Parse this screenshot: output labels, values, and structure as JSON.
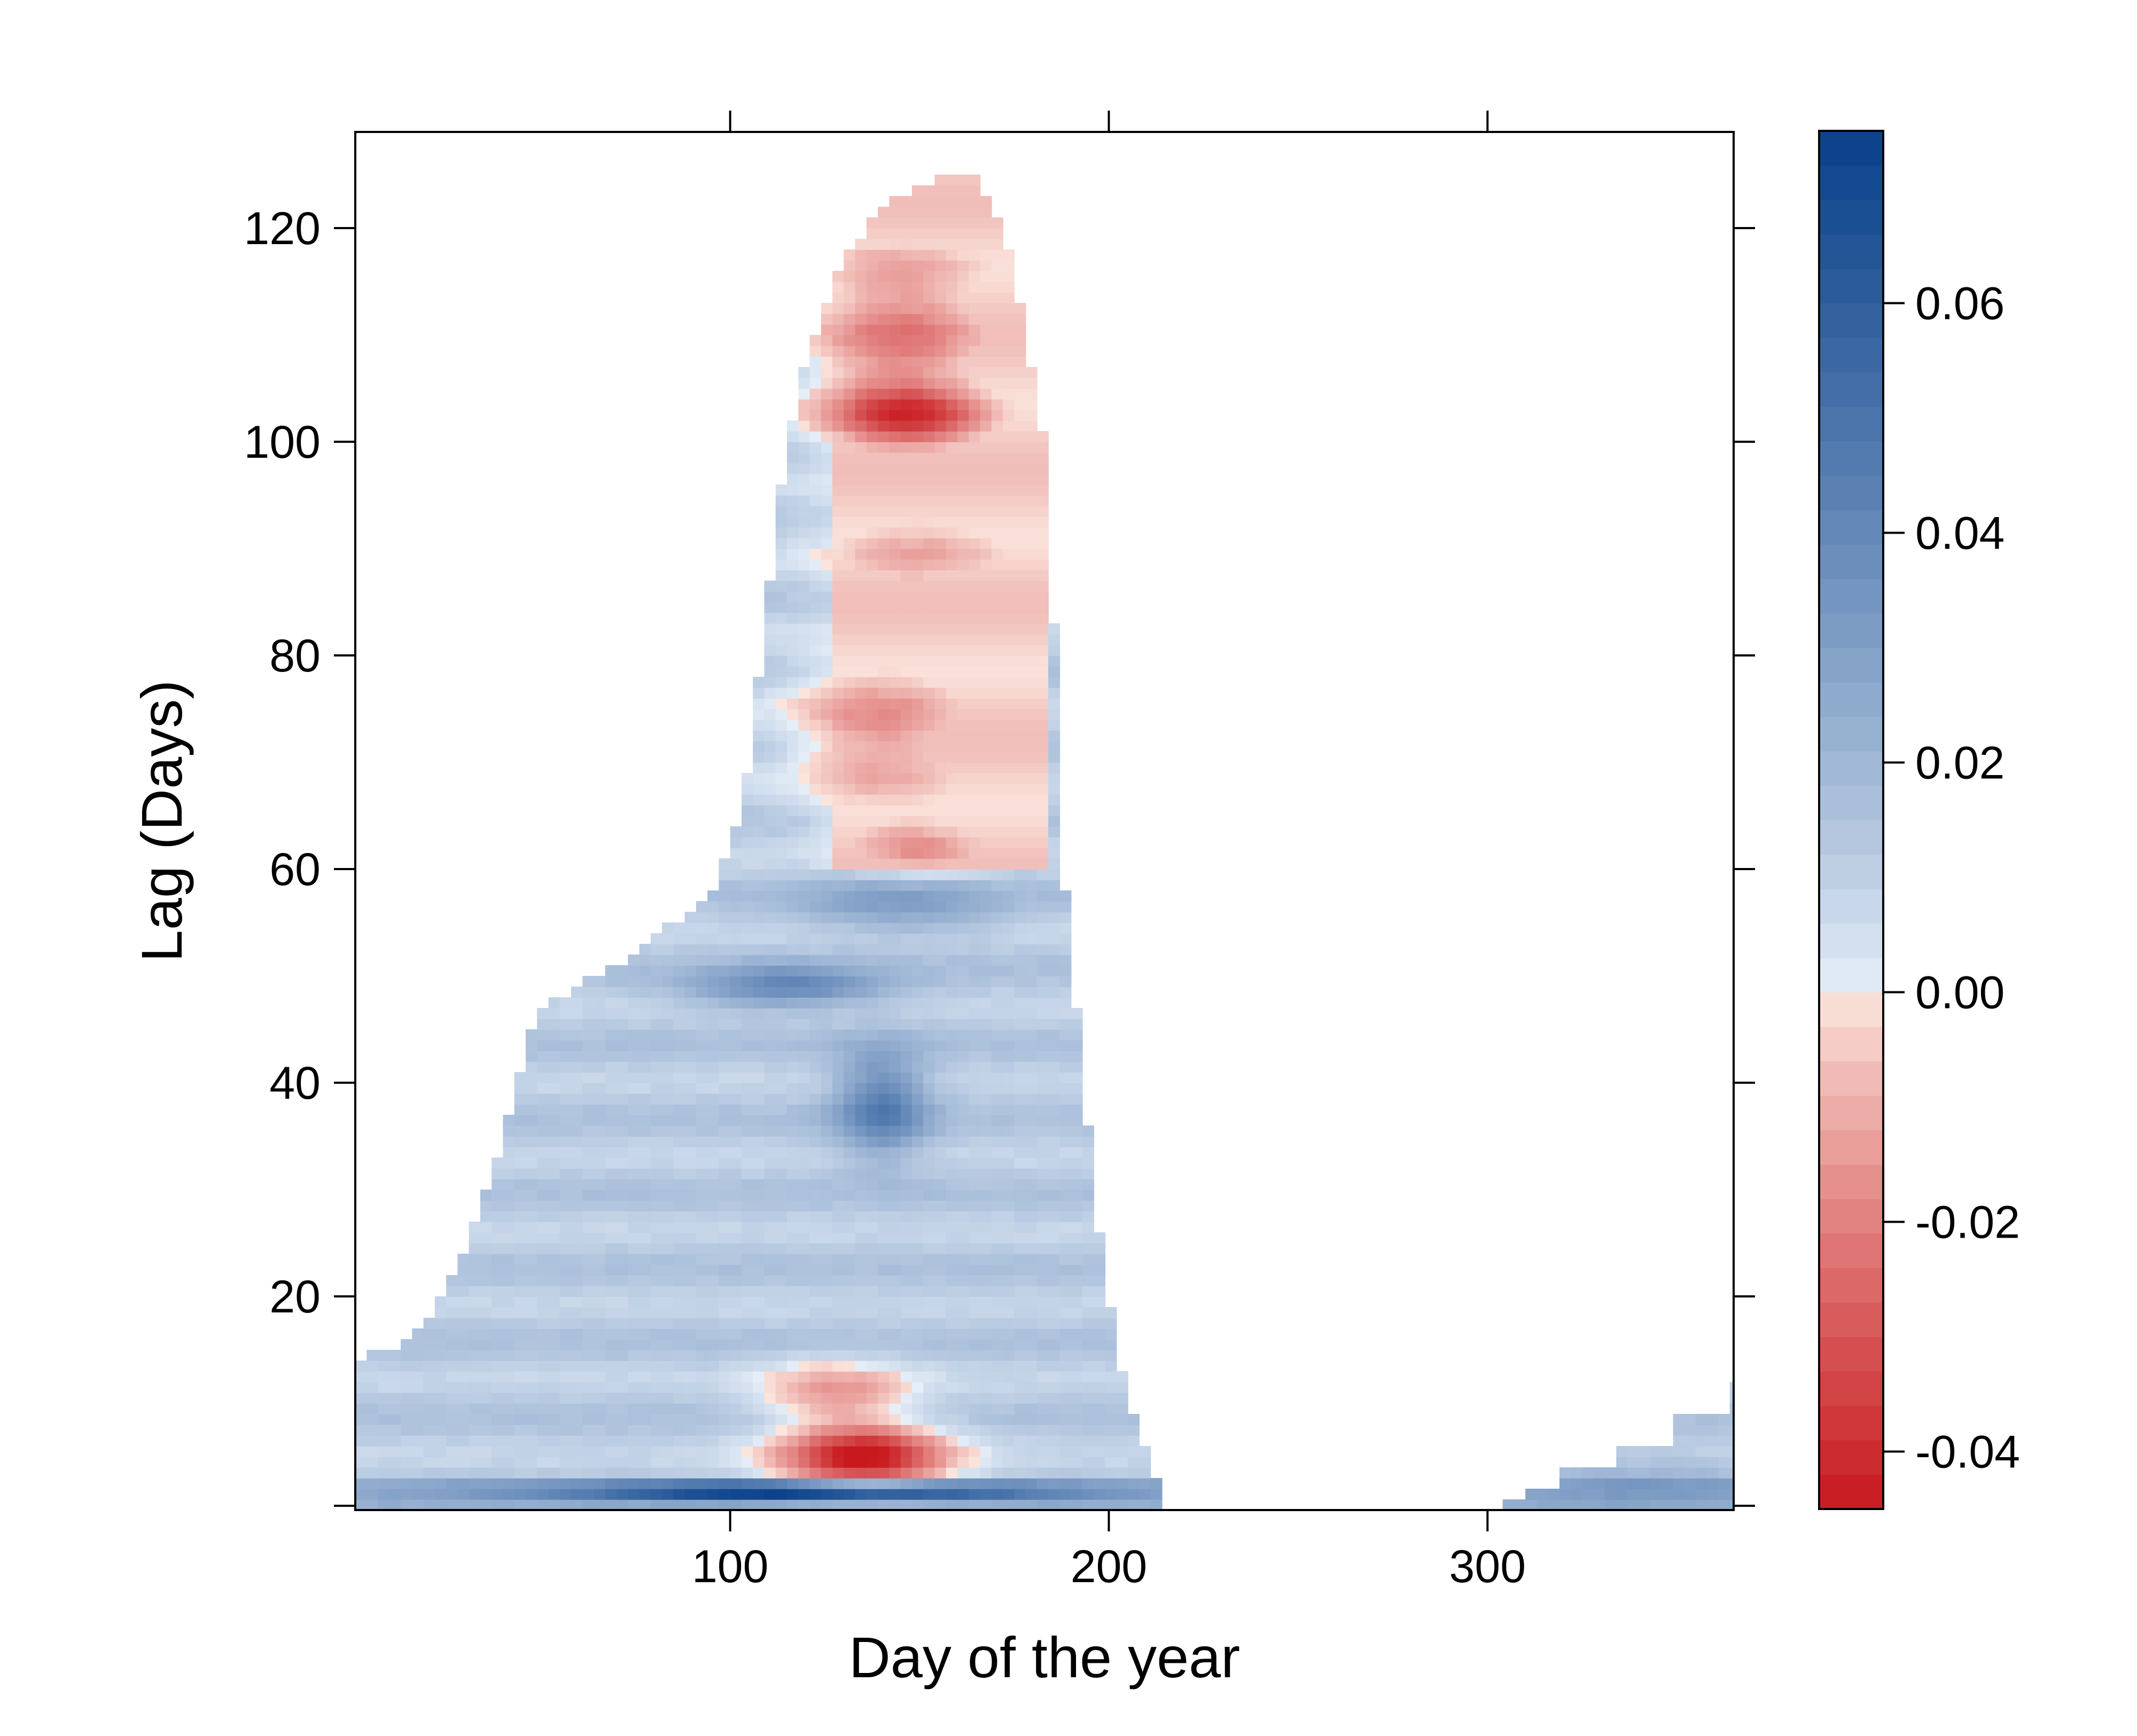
{
  "chart_data": {
    "type": "heatmap",
    "xlabel": "Day of the year",
    "ylabel": "Lag (Days)",
    "xlim": [
      1,
      365
    ],
    "ylim": [
      0,
      129
    ],
    "x_ticks": [
      100,
      200,
      300
    ],
    "x_tick_labels": [
      "100",
      "200",
      "300"
    ],
    "y_ticks": [
      20,
      40,
      60,
      80,
      100,
      120
    ],
    "y_tick_labels": [
      "20",
      "40",
      "60",
      "80",
      "100",
      "120"
    ],
    "colorbar": {
      "range": [
        -0.045,
        0.075
      ],
      "ticks": [
        -0.04,
        -0.02,
        0.0,
        0.02,
        0.04,
        0.06
      ],
      "tick_labels": [
        "-0.04",
        "-0.02",
        "0.00",
        "0.02",
        "0.04",
        "0.06"
      ],
      "negative_color": "#c8191e",
      "zero_color": "#ffffff",
      "positive_color": "#08408a",
      "steps": 40
    },
    "region_outline": {
      "description_points_lag_vs_day": "left boundary and right boundary of the colored area",
      "left_boundary": [
        [
          1,
          14
        ],
        [
          10,
          15
        ],
        [
          20,
          18
        ],
        [
          30,
          24
        ],
        [
          40,
          35
        ],
        [
          45,
          42
        ],
        [
          50,
          47
        ],
        [
          60,
          49
        ],
        [
          75,
          52
        ],
        [
          85,
          55
        ],
        [
          95,
          58
        ],
        [
          100,
          62
        ],
        [
          105,
          70
        ],
        [
          110,
          85
        ],
        [
          115,
          100
        ],
        [
          120,
          108
        ],
        [
          130,
          117
        ],
        [
          140,
          122
        ],
        [
          150,
          124
        ],
        [
          160,
          125
        ]
      ],
      "right_boundary": [
        [
          165,
          125
        ],
        [
          172,
          120
        ],
        [
          178,
          110
        ],
        [
          183,
          100
        ],
        [
          185,
          90
        ],
        [
          186,
          75
        ],
        [
          188,
          60
        ],
        [
          192,
          45
        ],
        [
          196,
          30
        ],
        [
          200,
          20
        ],
        [
          205,
          10
        ],
        [
          210,
          5
        ],
        [
          215,
          1
        ]
      ],
      "late_year_patch": [
        [
          305,
          1
        ],
        [
          310,
          2
        ],
        [
          320,
          4
        ],
        [
          335,
          6
        ],
        [
          350,
          9
        ],
        [
          365,
          12
        ]
      ]
    },
    "features": [
      {
        "day": 135,
        "lag": 5,
        "value": -0.045,
        "spread_day": 22,
        "spread_lag": 3
      },
      {
        "day": 128,
        "lag": 11,
        "value": -0.012,
        "spread_day": 20,
        "spread_lag": 3
      },
      {
        "day": 145,
        "lag": 110,
        "value": -0.02,
        "spread_day": 25,
        "spread_lag": 10
      },
      {
        "day": 147,
        "lag": 102,
        "value": -0.022,
        "spread_day": 22,
        "spread_lag": 3
      },
      {
        "day": 140,
        "lag": 73,
        "value": -0.015,
        "spread_day": 25,
        "spread_lag": 8
      },
      {
        "day": 150,
        "lag": 90,
        "value": -0.008,
        "spread_day": 28,
        "spread_lag": 5
      },
      {
        "day": 150,
        "lag": 62,
        "value": -0.012,
        "spread_day": 20,
        "spread_lag": 3
      },
      {
        "day": 120,
        "lag": 1.8,
        "value": 0.072,
        "spread_day": 60,
        "spread_lag": 0.8
      },
      {
        "day": 140,
        "lag": 38,
        "value": 0.045,
        "spread_day": 12,
        "spread_lag": 5
      },
      {
        "day": 115,
        "lag": 49,
        "value": 0.04,
        "spread_day": 25,
        "spread_lag": 2
      },
      {
        "day": 145,
        "lag": 57,
        "value": 0.03,
        "spread_day": 25,
        "spread_lag": 3
      },
      {
        "day": 340,
        "lag": 3,
        "value": 0.02,
        "spread_day": 30,
        "spread_lag": 3
      }
    ]
  }
}
